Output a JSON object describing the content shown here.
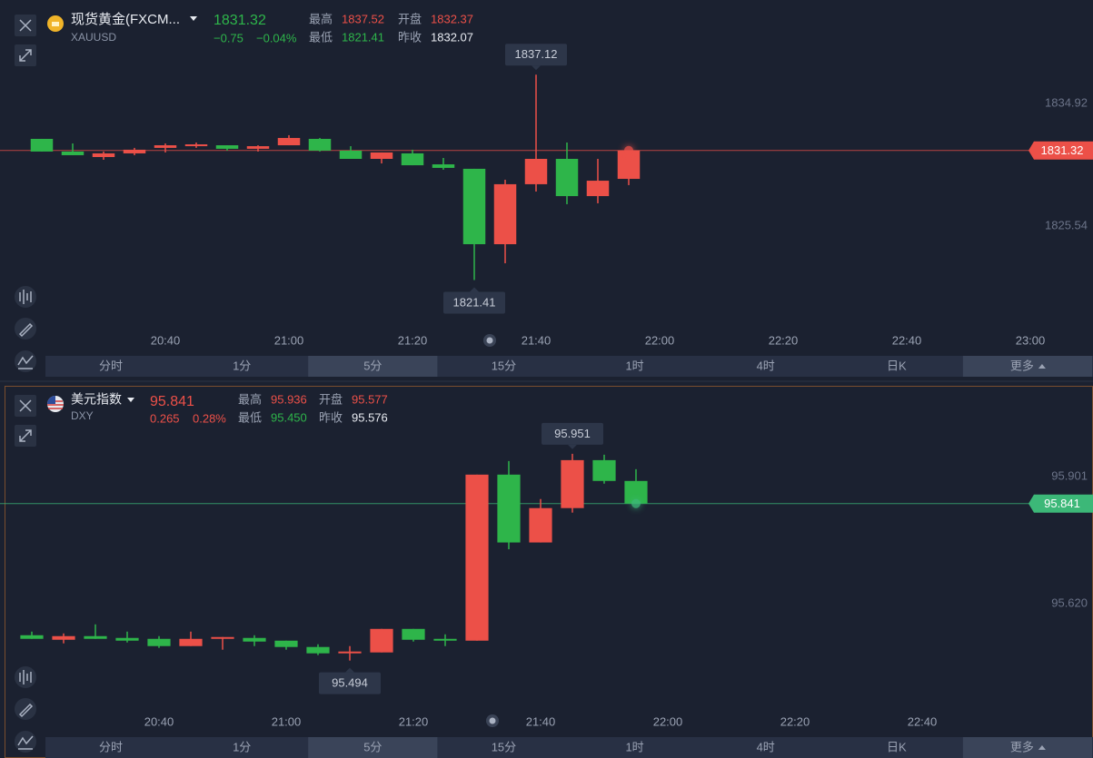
{
  "chart_data": [
    {
      "type": "candlestick",
      "symbol": "现货黄金(FXCM...",
      "code": "XAUUSD",
      "quote": {
        "price": "1831.32",
        "change": "−0.75",
        "change_pct": "−0.04%",
        "high_label": "最高",
        "high": "1837.52",
        "open_label": "开盘",
        "open": "1832.37",
        "low_label": "最低",
        "low": "1821.41",
        "prev_close_label": "昨收",
        "prev_close": "1832.07"
      },
      "x": [
        "20:20",
        "20:25",
        "20:30",
        "20:35",
        "20:40",
        "20:45",
        "20:50",
        "20:55",
        "21:00",
        "21:05",
        "21:10",
        "21:15",
        "21:20",
        "21:25",
        "21:30",
        "21:35",
        "21:40",
        "21:45",
        "21:50",
        "21:55"
      ],
      "open": [
        1832.21,
        1831.24,
        1830.82,
        1831.1,
        1831.52,
        1831.65,
        1831.72,
        1831.45,
        1831.72,
        1832.21,
        1831.31,
        1830.68,
        1831.1,
        1830.26,
        1829.92,
        1824.15,
        1828.74,
        1830.68,
        1827.83,
        1829.15
      ],
      "high": [
        1832.21,
        1831.86,
        1831.24,
        1831.52,
        1831.86,
        1831.93,
        1831.72,
        1831.72,
        1832.49,
        1832.28,
        1831.65,
        1831.17,
        1831.38,
        1830.75,
        1829.92,
        1829.08,
        1837.12,
        1831.93,
        1830.68,
        1831.32
      ],
      "low": [
        1831.24,
        1830.96,
        1830.61,
        1830.96,
        1831.17,
        1831.52,
        1831.31,
        1831.24,
        1831.72,
        1831.24,
        1830.68,
        1830.33,
        1830.19,
        1829.85,
        1821.41,
        1822.69,
        1828.18,
        1827.21,
        1827.28,
        1828.67
      ],
      "close": [
        1831.24,
        1830.96,
        1831.1,
        1831.38,
        1831.72,
        1831.79,
        1831.45,
        1831.65,
        1832.28,
        1831.31,
        1830.68,
        1831.17,
        1830.19,
        1829.99,
        1824.15,
        1828.74,
        1830.68,
        1827.83,
        1829.01,
        1831.32
      ],
      "xlim": [
        "20:15",
        "23:05"
      ],
      "xticks": [
        "20:40",
        "21:00",
        "21:20",
        "21:40",
        "22:00",
        "22:20",
        "22:40",
        "23:00"
      ],
      "ylim": [
        1817.83,
        1839.71
      ],
      "yticks": [
        1834.92,
        1825.54
      ],
      "last_price": 1831.32,
      "up_color": "#ec5048",
      "down_color": "#2eb54a",
      "last_color": "#ec5048",
      "annotations": [
        {
          "x": "21:40",
          "value": 1837.12,
          "placement": "above"
        },
        {
          "x": "21:30",
          "value": 1821.41,
          "placement": "below"
        }
      ],
      "timeframes": [
        "分时",
        "1分",
        "5分",
        "15分",
        "1时",
        "4时",
        "日K",
        "更多"
      ],
      "selected_timeframe": "5分"
    },
    {
      "type": "candlestick",
      "symbol": "美元指数",
      "code": "DXY",
      "quote": {
        "price": "95.841",
        "change": "0.265",
        "change_pct": "0.28%",
        "high_label": "最高",
        "high": "95.936",
        "open_label": "开盘",
        "open": "95.577",
        "low_label": "最低",
        "low": "95.450",
        "prev_close_label": "昨收",
        "prev_close": "95.576"
      },
      "x": [
        "20:20",
        "20:25",
        "20:30",
        "20:35",
        "20:40",
        "20:45",
        "20:50",
        "20:55",
        "21:00",
        "21:05",
        "21:10",
        "21:15",
        "21:20",
        "21:25",
        "21:30",
        "21:35",
        "21:40",
        "21:45",
        "21:50",
        "21:55"
      ],
      "open": [
        95.55,
        95.54,
        95.548,
        95.544,
        95.542,
        95.526,
        95.542,
        95.544,
        95.538,
        95.524,
        95.51,
        95.512,
        95.564,
        95.542,
        95.538,
        95.905,
        95.755,
        95.831,
        95.937,
        95.891
      ],
      "high": [
        95.558,
        95.554,
        95.574,
        95.558,
        95.548,
        95.558,
        95.546,
        95.55,
        95.538,
        95.53,
        95.526,
        95.564,
        95.564,
        95.552,
        95.905,
        95.935,
        95.851,
        95.951,
        95.949,
        95.917
      ],
      "low": [
        95.542,
        95.532,
        95.542,
        95.534,
        95.522,
        95.526,
        95.518,
        95.526,
        95.518,
        95.506,
        95.494,
        95.512,
        95.536,
        95.526,
        95.538,
        95.74,
        95.755,
        95.821,
        95.885,
        95.841
      ],
      "close": [
        95.542,
        95.548,
        95.542,
        95.538,
        95.526,
        95.542,
        95.546,
        95.536,
        95.524,
        95.51,
        95.514,
        95.564,
        95.54,
        95.538,
        95.905,
        95.755,
        95.831,
        95.937,
        95.891,
        95.841
      ],
      "xlim": [
        "20:15",
        "23:05"
      ],
      "xticks": [
        "20:40",
        "21:00",
        "21:20",
        "21:40",
        "22:00",
        "22:20",
        "22:40"
      ],
      "ylim": [
        95.389,
        96.011
      ],
      "yticks": [
        95.901,
        {
          "value": 95.62,
          "label": "95.620"
        }
      ],
      "last_price": 95.841,
      "up_color": "#ec5048",
      "down_color": "#2eb54a",
      "last_color": "#3cb878",
      "annotations": [
        {
          "x": "21:45",
          "value": 95.951,
          "placement": "above"
        },
        {
          "x": "21:10",
          "value": 95.494,
          "placement": "below"
        }
      ],
      "timeframes": [
        "分时",
        "1分",
        "5分",
        "15分",
        "1时",
        "4时",
        "日K",
        "更多"
      ],
      "selected_timeframe": "5分"
    }
  ]
}
